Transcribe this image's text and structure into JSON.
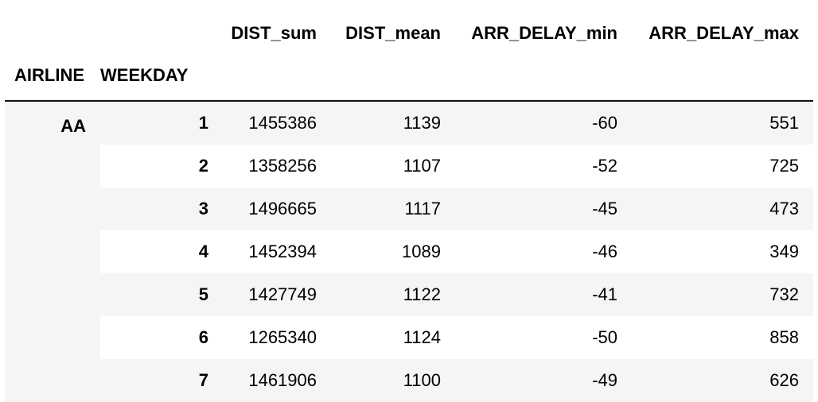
{
  "table": {
    "columns": [
      "DIST_sum",
      "DIST_mean",
      "ARR_DELAY_min",
      "ARR_DELAY_max"
    ],
    "index_names": [
      "AIRLINE",
      "WEEKDAY"
    ],
    "airline": "AA",
    "rows": [
      {
        "weekday": "1",
        "dist_sum": "1455386",
        "dist_mean": "1139",
        "arr_delay_min": "-60",
        "arr_delay_max": "551"
      },
      {
        "weekday": "2",
        "dist_sum": "1358256",
        "dist_mean": "1107",
        "arr_delay_min": "-52",
        "arr_delay_max": "725"
      },
      {
        "weekday": "3",
        "dist_sum": "1496665",
        "dist_mean": "1117",
        "arr_delay_min": "-45",
        "arr_delay_max": "473"
      },
      {
        "weekday": "4",
        "dist_sum": "1452394",
        "dist_mean": "1089",
        "arr_delay_min": "-46",
        "arr_delay_max": "349"
      },
      {
        "weekday": "5",
        "dist_sum": "1427749",
        "dist_mean": "1122",
        "arr_delay_min": "-41",
        "arr_delay_max": "732"
      },
      {
        "weekday": "6",
        "dist_sum": "1265340",
        "dist_mean": "1124",
        "arr_delay_min": "-50",
        "arr_delay_max": "858"
      },
      {
        "weekday": "7",
        "dist_sum": "1461906",
        "dist_mean": "1100",
        "arr_delay_min": "-49",
        "arr_delay_max": "626"
      }
    ]
  }
}
